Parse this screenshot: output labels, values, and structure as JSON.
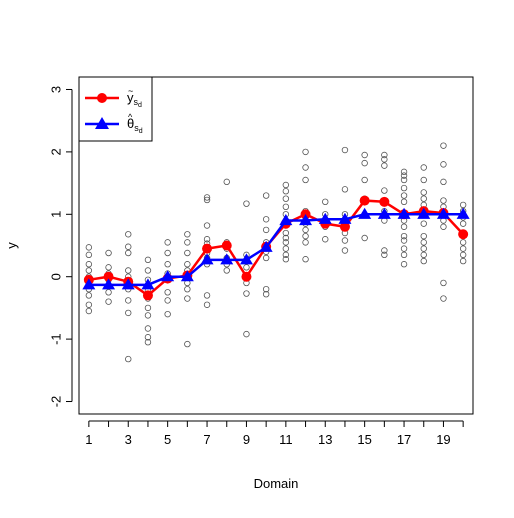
{
  "chart_data": {
    "type": "line",
    "xlabel": "Domain",
    "ylabel": "y",
    "xlim": [
      0.5,
      20.5
    ],
    "ylim": [
      -2.2,
      3.2
    ],
    "x_ticks": [
      1,
      2,
      3,
      4,
      5,
      6,
      7,
      8,
      9,
      10,
      11,
      12,
      13,
      14,
      15,
      16,
      17,
      18,
      19,
      20
    ],
    "x_tick_labels": [
      "1",
      "",
      "3",
      "",
      "5",
      "",
      "7",
      "",
      "9",
      "",
      "11",
      "",
      "13",
      "",
      "15",
      "",
      "17",
      "",
      "19",
      ""
    ],
    "y_ticks": [
      -2,
      -1,
      0,
      1,
      2,
      3
    ],
    "y_tick_labels": [
      "-2",
      "-1",
      "0",
      "1",
      "2",
      "3"
    ],
    "grid": false,
    "legend_position": "top-left",
    "legend": [
      {
        "label_main": "y",
        "accent": "~",
        "label_sub": "s",
        "label_subsub": "d",
        "color": "#ff0000",
        "marker": "circle"
      },
      {
        "label_main": "θ",
        "accent": "^",
        "label_sub": "s",
        "label_subsub": "d",
        "color": "#0000ff",
        "marker": "triangle"
      }
    ],
    "series": [
      {
        "key": "y_tilde",
        "color": "#ff0000",
        "marker": "circle",
        "x": [
          1,
          2,
          3,
          4,
          5,
          6,
          7,
          8,
          9,
          10,
          11,
          12,
          13,
          14,
          15,
          16,
          17,
          18,
          19,
          20
        ],
        "values": [
          -0.05,
          0.0,
          -0.08,
          -0.3,
          -0.03,
          0.02,
          0.45,
          0.5,
          0.0,
          0.48,
          0.85,
          1.0,
          0.85,
          0.8,
          1.22,
          1.2,
          1.0,
          1.05,
          1.02,
          0.68
        ]
      },
      {
        "key": "theta_hat",
        "color": "#0000ff",
        "marker": "triangle",
        "x": [
          1,
          2,
          3,
          4,
          5,
          6,
          7,
          8,
          9,
          10,
          11,
          12,
          13,
          14,
          15,
          16,
          17,
          18,
          19,
          20
        ],
        "values": [
          -0.13,
          -0.13,
          -0.13,
          -0.13,
          0.0,
          0.0,
          0.27,
          0.27,
          0.27,
          0.47,
          0.9,
          0.9,
          0.92,
          0.92,
          1.0,
          1.0,
          1.0,
          1.0,
          1.0,
          1.0
        ]
      }
    ],
    "scatter_points": [
      [
        1,
        0.47
      ],
      [
        1,
        0.35
      ],
      [
        1,
        0.2
      ],
      [
        1,
        0.1
      ],
      [
        1,
        0.0
      ],
      [
        1,
        -0.1
      ],
      [
        1,
        -0.2
      ],
      [
        1,
        -0.3
      ],
      [
        1,
        -0.45
      ],
      [
        1,
        -0.55
      ],
      [
        2,
        0.38
      ],
      [
        2,
        0.15
      ],
      [
        2,
        0.05
      ],
      [
        2,
        -0.05
      ],
      [
        2,
        -0.15
      ],
      [
        2,
        -0.25
      ],
      [
        2,
        -0.4
      ],
      [
        3,
        0.68
      ],
      [
        3,
        0.48
      ],
      [
        3,
        0.38
      ],
      [
        3,
        0.1
      ],
      [
        3,
        0.0
      ],
      [
        3,
        -0.1
      ],
      [
        3,
        -0.2
      ],
      [
        3,
        -0.38
      ],
      [
        3,
        -0.58
      ],
      [
        3,
        -1.32
      ],
      [
        4,
        0.27
      ],
      [
        4,
        0.1
      ],
      [
        4,
        -0.05
      ],
      [
        4,
        -0.15
      ],
      [
        4,
        -0.22
      ],
      [
        4,
        -0.35
      ],
      [
        4,
        -0.5
      ],
      [
        4,
        -0.62
      ],
      [
        4,
        -0.83
      ],
      [
        4,
        -0.97
      ],
      [
        4,
        -1.05
      ],
      [
        5,
        0.55
      ],
      [
        5,
        0.38
      ],
      [
        5,
        0.2
      ],
      [
        5,
        0.05
      ],
      [
        5,
        -0.05
      ],
      [
        5,
        -0.25
      ],
      [
        5,
        -0.38
      ],
      [
        5,
        -0.6
      ],
      [
        6,
        0.68
      ],
      [
        6,
        0.55
      ],
      [
        6,
        0.38
      ],
      [
        6,
        0.2
      ],
      [
        6,
        0.1
      ],
      [
        6,
        0.0
      ],
      [
        6,
        -0.1
      ],
      [
        6,
        -0.2
      ],
      [
        6,
        -0.35
      ],
      [
        6,
        -1.08
      ],
      [
        7,
        1.27
      ],
      [
        7,
        1.23
      ],
      [
        7,
        0.82
      ],
      [
        7,
        0.6
      ],
      [
        7,
        0.53
      ],
      [
        7,
        0.45
      ],
      [
        7,
        0.38
      ],
      [
        7,
        0.3
      ],
      [
        7,
        0.2
      ],
      [
        7,
        -0.3
      ],
      [
        7,
        -0.45
      ],
      [
        8,
        1.52
      ],
      [
        8,
        0.55
      ],
      [
        8,
        0.45
      ],
      [
        8,
        0.3
      ],
      [
        8,
        0.2
      ],
      [
        8,
        0.1
      ],
      [
        9,
        1.17
      ],
      [
        9,
        0.35
      ],
      [
        9,
        0.25
      ],
      [
        9,
        0.15
      ],
      [
        9,
        0.0
      ],
      [
        9,
        -0.1
      ],
      [
        9,
        -0.27
      ],
      [
        9,
        -0.92
      ],
      [
        10,
        1.3
      ],
      [
        10,
        0.92
      ],
      [
        10,
        0.75
      ],
      [
        10,
        0.55
      ],
      [
        10,
        0.4
      ],
      [
        10,
        0.3
      ],
      [
        10,
        -0.2
      ],
      [
        10,
        -0.28
      ],
      [
        11,
        1.47
      ],
      [
        11,
        1.37
      ],
      [
        11,
        1.25
      ],
      [
        11,
        1.12
      ],
      [
        11,
        1.0
      ],
      [
        11,
        0.9
      ],
      [
        11,
        0.82
      ],
      [
        11,
        0.7
      ],
      [
        11,
        0.62
      ],
      [
        11,
        0.55
      ],
      [
        11,
        0.45
      ],
      [
        11,
        0.35
      ],
      [
        11,
        0.28
      ],
      [
        12,
        2.0
      ],
      [
        12,
        1.75
      ],
      [
        12,
        1.55
      ],
      [
        12,
        1.05
      ],
      [
        12,
        0.95
      ],
      [
        12,
        0.85
      ],
      [
        12,
        0.75
      ],
      [
        12,
        0.65
      ],
      [
        12,
        0.55
      ],
      [
        12,
        0.28
      ],
      [
        13,
        1.2
      ],
      [
        13,
        1.0
      ],
      [
        13,
        0.9
      ],
      [
        13,
        0.8
      ],
      [
        13,
        0.6
      ],
      [
        14,
        2.03
      ],
      [
        14,
        1.4
      ],
      [
        14,
        1.0
      ],
      [
        14,
        0.9
      ],
      [
        14,
        0.8
      ],
      [
        14,
        0.7
      ],
      [
        14,
        0.58
      ],
      [
        14,
        0.42
      ],
      [
        15,
        1.95
      ],
      [
        15,
        1.82
      ],
      [
        15,
        1.55
      ],
      [
        15,
        1.25
      ],
      [
        15,
        1.0
      ],
      [
        15,
        0.62
      ],
      [
        16,
        1.95
      ],
      [
        16,
        1.88
      ],
      [
        16,
        1.78
      ],
      [
        16,
        1.38
      ],
      [
        16,
        1.05
      ],
      [
        16,
        0.9
      ],
      [
        16,
        0.42
      ],
      [
        16,
        0.35
      ],
      [
        17,
        1.68
      ],
      [
        17,
        1.62
      ],
      [
        17,
        1.55
      ],
      [
        17,
        1.42
      ],
      [
        17,
        1.3
      ],
      [
        17,
        1.2
      ],
      [
        17,
        1.0
      ],
      [
        17,
        0.9
      ],
      [
        17,
        0.8
      ],
      [
        17,
        0.65
      ],
      [
        17,
        0.58
      ],
      [
        17,
        0.45
      ],
      [
        17,
        0.35
      ],
      [
        17,
        0.2
      ],
      [
        18,
        1.75
      ],
      [
        18,
        1.55
      ],
      [
        18,
        1.35
      ],
      [
        18,
        1.25
      ],
      [
        18,
        1.15
      ],
      [
        18,
        1.0
      ],
      [
        18,
        0.85
      ],
      [
        18,
        0.65
      ],
      [
        18,
        0.55
      ],
      [
        18,
        0.45
      ],
      [
        18,
        0.35
      ],
      [
        18,
        0.25
      ],
      [
        19,
        2.1
      ],
      [
        19,
        1.8
      ],
      [
        19,
        1.52
      ],
      [
        19,
        1.22
      ],
      [
        19,
        1.12
      ],
      [
        19,
        1.0
      ],
      [
        19,
        0.9
      ],
      [
        19,
        0.8
      ],
      [
        19,
        -0.1
      ],
      [
        19,
        -0.35
      ],
      [
        20,
        1.15
      ],
      [
        20,
        1.05
      ],
      [
        20,
        0.95
      ],
      [
        20,
        0.85
      ],
      [
        20,
        0.7
      ],
      [
        20,
        0.55
      ],
      [
        20,
        0.45
      ],
      [
        20,
        0.35
      ],
      [
        20,
        0.25
      ]
    ]
  }
}
